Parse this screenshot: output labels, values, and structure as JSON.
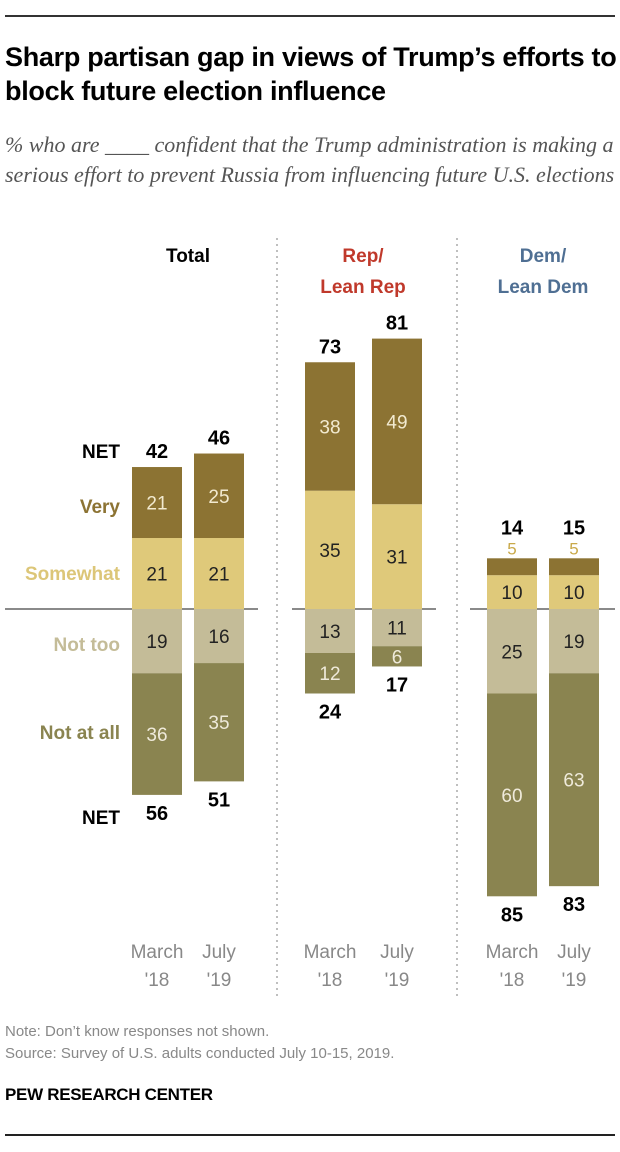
{
  "title": "Sharp partisan gap in views of Trump’s efforts to block future election influence",
  "subtitle": "% who are ____ confident that the Trump administration is making a serious effort to prevent Russia from influencing future U.S. elections",
  "note": "Note: Don’t know responses not shown.",
  "source": "Source: Survey of U.S. adults conducted July 10-15, 2019.",
  "brand": "PEW RESEARCH CENTER",
  "chart_data": {
    "type": "bar",
    "stacked": "diverging",
    "net_label": "NET",
    "categories": [
      {
        "line1": "March",
        "line2": "'18"
      },
      {
        "line1": "July",
        "line2": "'19"
      }
    ],
    "categories_flat": [
      "March '18",
      "July '19"
    ],
    "segments": [
      {
        "name": "Very",
        "color": "#8c7333",
        "text_color": "#8c7333",
        "side": "positive"
      },
      {
        "name": "Somewhat",
        "color": "#dfc97a",
        "text_color": "#dcc678",
        "side": "positive"
      },
      {
        "name": "Not too",
        "color": "#c4bc98",
        "text_color": "#c4bc98",
        "side": "negative"
      },
      {
        "name": "Not at all",
        "color": "#8a8450",
        "text_color": "#8a8450",
        "side": "negative"
      }
    ],
    "groups": [
      {
        "title": [
          "Total"
        ],
        "title_color": "#000000",
        "values": {
          "Very": [
            21,
            25
          ],
          "Somewhat": [
            21,
            21
          ],
          "Not too": [
            19,
            16
          ],
          "Not at all": [
            36,
            35
          ]
        },
        "net_positive": [
          42,
          46
        ],
        "net_negative": [
          56,
          51
        ]
      },
      {
        "title": [
          "Rep/",
          "Lean Rep"
        ],
        "title_color": "#c0392b",
        "values": {
          "Very": [
            38,
            49
          ],
          "Somewhat": [
            35,
            31
          ],
          "Not too": [
            13,
            11
          ],
          "Not at all": [
            12,
            6
          ]
        },
        "net_positive": [
          73,
          81
        ],
        "net_negative": [
          24,
          17
        ]
      },
      {
        "title": [
          "Dem/",
          "Lean Dem"
        ],
        "title_color": "#4f6f93",
        "values": {
          "Very": [
            5,
            5
          ],
          "Somewhat": [
            10,
            10
          ],
          "Not too": [
            25,
            19
          ],
          "Not at all": [
            60,
            63
          ]
        },
        "net_positive": [
          14,
          15
        ],
        "net_negative": [
          85,
          83
        ]
      }
    ]
  }
}
